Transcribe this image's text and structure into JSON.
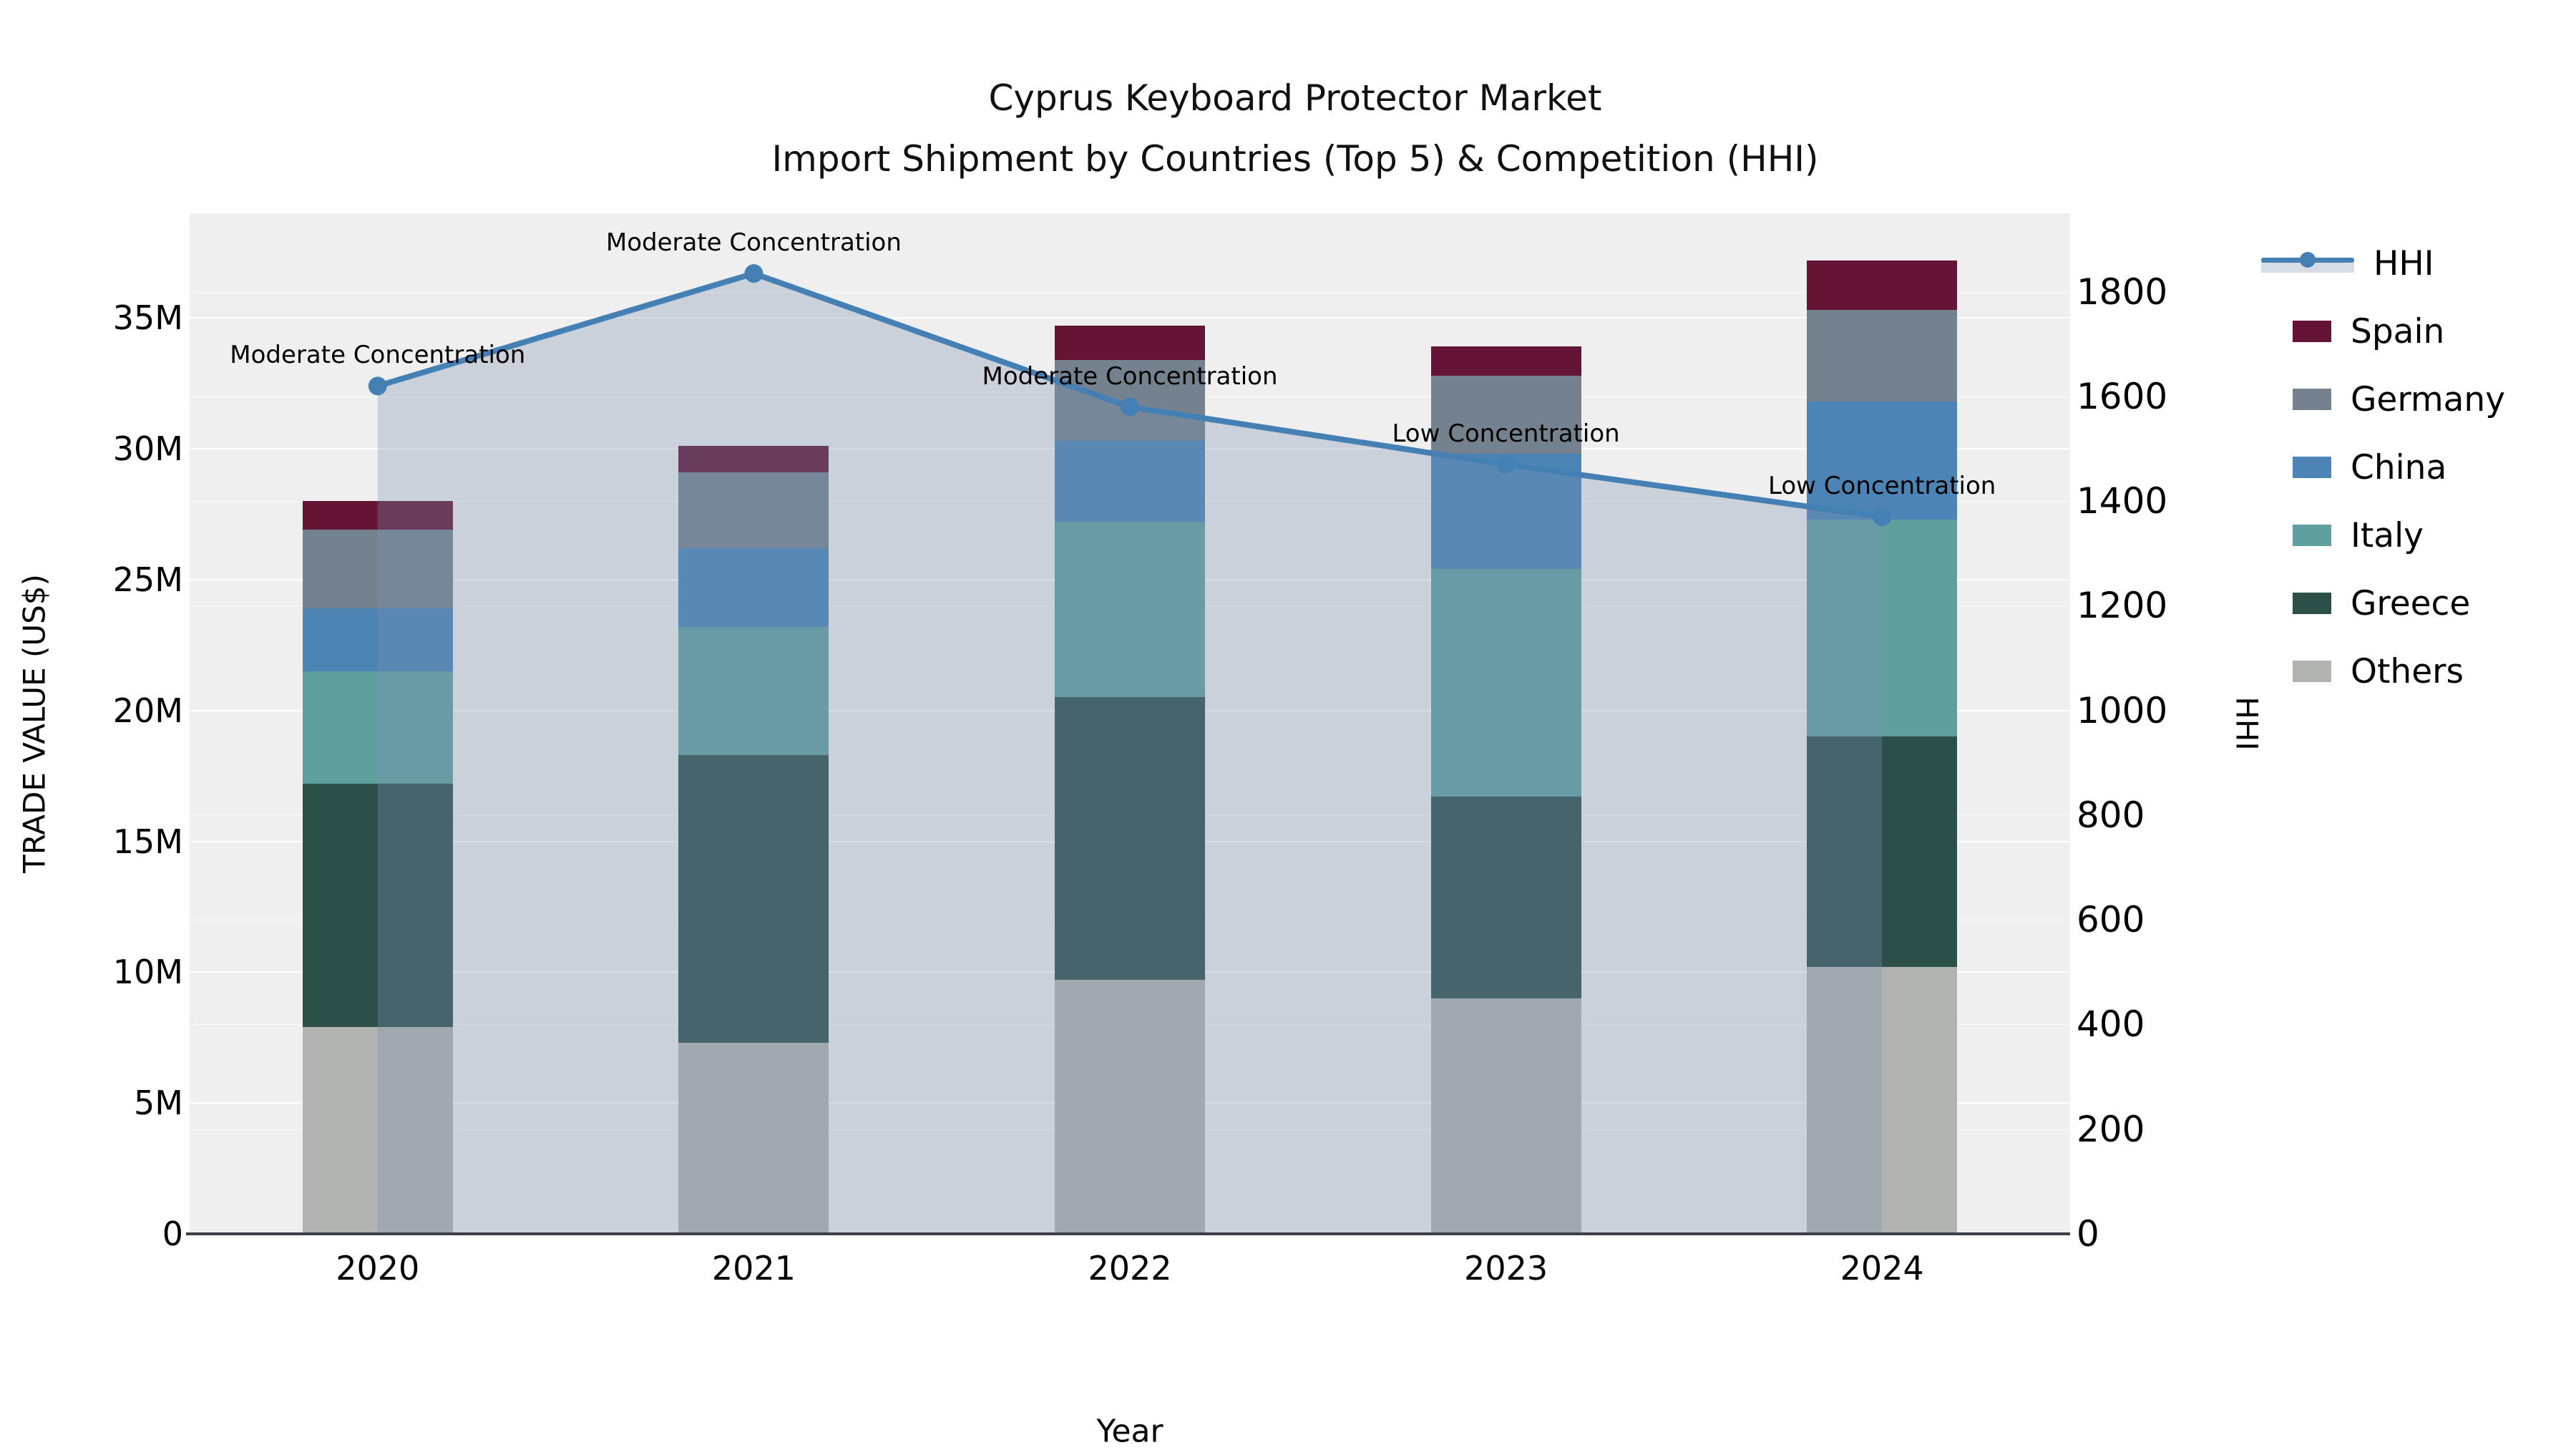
{
  "title": {
    "line1": "Cyprus Keyboard Protector Market",
    "line2": "Import Shipment by Countries (Top 5) & Competition (HHI)"
  },
  "axes": {
    "x": {
      "title": "Year",
      "tick_labels": [
        "2020",
        "2021",
        "2022",
        "2023",
        "2024"
      ]
    },
    "y_left": {
      "title": "TRADE VALUE (US$)",
      "tick_labels": [
        "0",
        "5M",
        "10M",
        "15M",
        "20M",
        "25M",
        "30M",
        "35M"
      ],
      "tick_values_musd": [
        0,
        5,
        10,
        15,
        20,
        25,
        30,
        35
      ],
      "max_musd": 39.0
    },
    "y_right": {
      "title": "HHI",
      "tick_labels": [
        "0",
        "200",
        "400",
        "600",
        "800",
        "1000",
        "1200",
        "1400",
        "1600",
        "1800"
      ],
      "tick_values": [
        0,
        200,
        400,
        600,
        800,
        1000,
        1200,
        1400,
        1600,
        1800
      ],
      "max": 1950
    }
  },
  "legend": {
    "items": [
      {
        "label": "HHI",
        "kind": "line",
        "color": "#4580b4",
        "band_color": "#d6dde7"
      },
      {
        "label": "Spain",
        "kind": "swatch",
        "color": "#641536"
      },
      {
        "label": "Germany",
        "kind": "swatch",
        "color": "#74828f"
      },
      {
        "label": "China",
        "kind": "swatch",
        "color": "#4b84b5"
      },
      {
        "label": "Italy",
        "kind": "swatch",
        "color": "#5f9f9e"
      },
      {
        "label": "Greece",
        "kind": "swatch",
        "color": "#2c4f4a"
      },
      {
        "label": "Others",
        "kind": "swatch",
        "color": "#b1b3b0"
      }
    ]
  },
  "annotations": [
    {
      "year": "2020",
      "text": "Moderate Concentration"
    },
    {
      "year": "2021",
      "text": "Moderate Concentration"
    },
    {
      "year": "2022",
      "text": "Moderate Concentration"
    },
    {
      "year": "2023",
      "text": "Low Concentration"
    },
    {
      "year": "2024",
      "text": "Low Concentration"
    }
  ],
  "chart_data": {
    "type": "bar",
    "combo": "stacked-bars-plus-line",
    "title": "Cyprus Keyboard Protector Market — Import Shipment by Countries (Top 5) & Competition (HHI)",
    "categories": [
      "2020",
      "2021",
      "2022",
      "2023",
      "2024"
    ],
    "bar_unit": "million US$",
    "series": [
      {
        "name": "Others",
        "color": "#b1b3b0",
        "values": [
          7.9,
          7.3,
          9.7,
          9.0,
          10.2
        ]
      },
      {
        "name": "Greece",
        "color": "#2c4f4a",
        "values": [
          9.3,
          11.0,
          10.8,
          7.7,
          8.8
        ]
      },
      {
        "name": "Italy",
        "color": "#5f9f9e",
        "values": [
          4.3,
          4.9,
          6.7,
          8.7,
          8.3
        ]
      },
      {
        "name": "China",
        "color": "#4b84b5",
        "values": [
          2.4,
          3.0,
          3.1,
          4.4,
          4.5
        ]
      },
      {
        "name": "Germany",
        "color": "#74828f",
        "values": [
          3.0,
          2.9,
          3.1,
          3.0,
          3.5
        ]
      },
      {
        "name": "Spain",
        "color": "#641536",
        "values": [
          1.1,
          1.0,
          1.3,
          1.1,
          1.9
        ]
      }
    ],
    "bar_totals_musd": [
      28.0,
      30.1,
      34.7,
      33.9,
      37.2
    ],
    "line": {
      "name": "HHI",
      "axis": "right",
      "color": "#4580b4",
      "values": [
        1620,
        1835,
        1580,
        1470,
        1370
      ],
      "fill": "tozeroy",
      "fill_color": "rgba(125,145,178,0.32)"
    },
    "xlabel": "Year",
    "ylabel_left": "TRADE VALUE (US$)",
    "ylabel_right": "HHI",
    "ylim_left_musd": [
      0,
      39.0
    ],
    "ylim_right": [
      0,
      1950
    ],
    "grid": true,
    "legend_position": "right"
  },
  "colors": {
    "page_bg": "#ffffff",
    "plot_bg": "#efefef",
    "grid": "#ffffff",
    "axis_line": "#3a4046",
    "text": "#000000"
  }
}
